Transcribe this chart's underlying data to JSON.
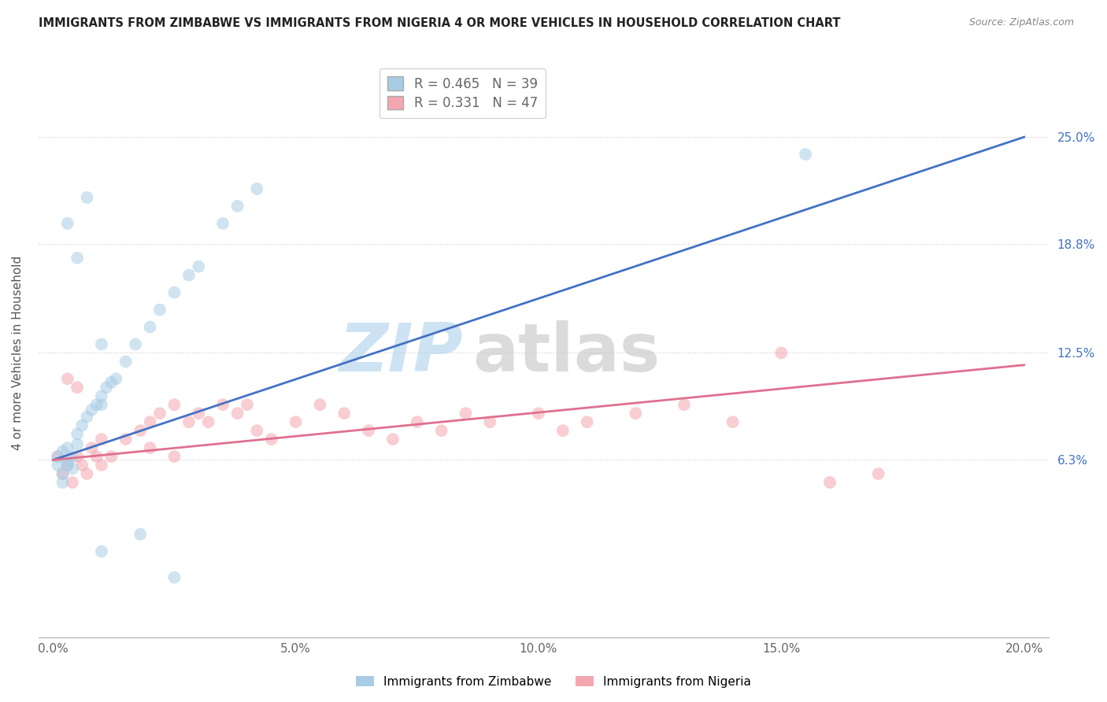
{
  "title": "IMMIGRANTS FROM ZIMBABWE VS IMMIGRANTS FROM NIGERIA 4 OR MORE VEHICLES IN HOUSEHOLD CORRELATION CHART",
  "source": "Source: ZipAtlas.com",
  "ylabel": "4 or more Vehicles in Household",
  "legend_zim": "Immigrants from Zimbabwe",
  "legend_nig": "Immigrants from Nigeria",
  "R_zim": 0.465,
  "N_zim": 39,
  "R_nig": 0.331,
  "N_nig": 47,
  "color_zim": "#a8cce4",
  "color_nig": "#f4a7b0",
  "line_color_zim": "#4472c4",
  "line_color_nig": "#e07090",
  "zim_line_x0": 0.0,
  "zim_line_y0": 0.063,
  "zim_line_x1": 0.2,
  "zim_line_y1": 0.25,
  "nig_line_x0": 0.0,
  "nig_line_y0": 0.063,
  "nig_line_x1": 0.2,
  "nig_line_y1": 0.118,
  "xlim_lo": -0.003,
  "xlim_hi": 0.205,
  "ylim_lo": -0.04,
  "ylim_hi": 0.29,
  "yticks": [
    0.063,
    0.125,
    0.188,
    0.25
  ],
  "ytick_labels": [
    "6.3%",
    "12.5%",
    "18.8%",
    "25.0%"
  ],
  "xticks": [
    0.0,
    0.05,
    0.1,
    0.15,
    0.2
  ],
  "xtick_labels": [
    "0.0%",
    "5.0%",
    "10.0%",
    "15.0%",
    "20.0%"
  ],
  "zim_x": [
    0.001,
    0.001,
    0.002,
    0.002,
    0.003,
    0.003,
    0.003,
    0.004,
    0.004,
    0.005,
    0.005,
    0.006,
    0.007,
    0.008,
    0.009,
    0.01,
    0.01,
    0.011,
    0.012,
    0.013,
    0.015,
    0.017,
    0.02,
    0.022,
    0.025,
    0.028,
    0.03,
    0.035,
    0.038,
    0.042,
    0.002,
    0.003,
    0.005,
    0.007,
    0.01,
    0.018,
    0.025,
    0.01,
    0.155
  ],
  "zim_y": [
    0.06,
    0.065,
    0.068,
    0.055,
    0.06,
    0.062,
    0.07,
    0.058,
    0.065,
    0.072,
    0.078,
    0.083,
    0.088,
    0.092,
    0.095,
    0.095,
    0.1,
    0.105,
    0.108,
    0.11,
    0.12,
    0.13,
    0.14,
    0.15,
    0.16,
    0.17,
    0.175,
    0.2,
    0.21,
    0.22,
    0.05,
    0.2,
    0.18,
    0.215,
    0.01,
    0.02,
    -0.005,
    0.13,
    0.24
  ],
  "nig_x": [
    0.001,
    0.002,
    0.003,
    0.004,
    0.005,
    0.006,
    0.007,
    0.008,
    0.009,
    0.01,
    0.012,
    0.015,
    0.018,
    0.02,
    0.022,
    0.025,
    0.028,
    0.03,
    0.032,
    0.035,
    0.038,
    0.04,
    0.042,
    0.045,
    0.05,
    0.055,
    0.06,
    0.065,
    0.07,
    0.075,
    0.08,
    0.085,
    0.09,
    0.1,
    0.105,
    0.11,
    0.12,
    0.13,
    0.14,
    0.15,
    0.16,
    0.17,
    0.003,
    0.005,
    0.01,
    0.02,
    0.025
  ],
  "nig_y": [
    0.065,
    0.055,
    0.06,
    0.05,
    0.065,
    0.06,
    0.055,
    0.07,
    0.065,
    0.06,
    0.065,
    0.075,
    0.08,
    0.085,
    0.09,
    0.095,
    0.085,
    0.09,
    0.085,
    0.095,
    0.09,
    0.095,
    0.08,
    0.075,
    0.085,
    0.095,
    0.09,
    0.08,
    0.075,
    0.085,
    0.08,
    0.09,
    0.085,
    0.09,
    0.08,
    0.085,
    0.09,
    0.095,
    0.085,
    0.125,
    0.05,
    0.055,
    0.11,
    0.105,
    0.075,
    0.07,
    0.065
  ]
}
